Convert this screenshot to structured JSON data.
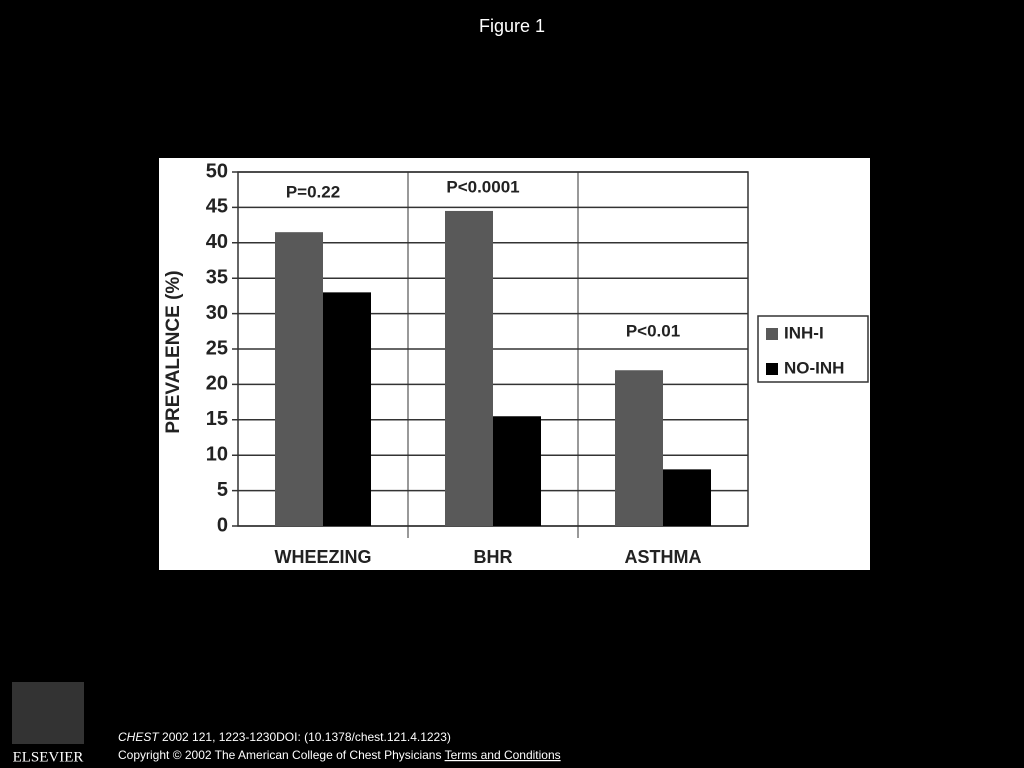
{
  "title": "Figure 1",
  "chart_data": {
    "type": "bar",
    "ylabel": "PREVALENCE (%)",
    "categories": [
      "WHEEZING",
      "BHR",
      "ASTHMA"
    ],
    "series": [
      {
        "name": "INH-I",
        "color": "#595959",
        "values": [
          41.5,
          44.5,
          22
        ]
      },
      {
        "name": "NO-INH",
        "color": "#000000",
        "values": [
          33,
          15.5,
          8
        ]
      }
    ],
    "annotations": [
      "P=0.22",
      "P<0.0001",
      "P<0.01"
    ],
    "ylim": [
      0,
      50
    ],
    "yticks": [
      0,
      5,
      10,
      15,
      20,
      25,
      30,
      35,
      40,
      45,
      50
    ],
    "grid": true,
    "legend": "right"
  },
  "footer": {
    "logo": "ELSEVIER",
    "journal": "CHEST",
    "citation": "2002 121, 1223-1230DOI: (10.1378/chest.121.4.1223)",
    "copyright": "Copyright © 2002 The American College of Chest Physicians",
    "link": "Terms and Conditions"
  }
}
